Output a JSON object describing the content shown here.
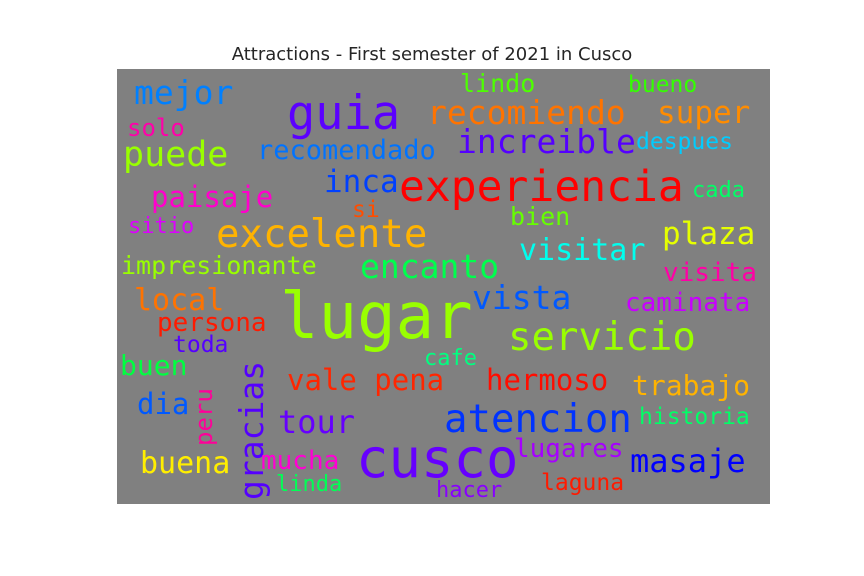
{
  "title": "Attractions - First semester of 2021 in Cusco",
  "words": {
    "lugar": {
      "text": "lugar",
      "color": "#99ff00"
    },
    "cusco": {
      "text": "cusco",
      "color": "#6600ff"
    },
    "experiencia": {
      "text": "experiencia",
      "color": "#ff0000"
    },
    "guia": {
      "text": "guia",
      "color": "#5b00ff"
    },
    "excelente": {
      "text": "excelente",
      "color": "#ffb300"
    },
    "atencion": {
      "text": "atencion",
      "color": "#0033ff"
    },
    "servicio": {
      "text": "servicio",
      "color": "#99ff00"
    },
    "recomiendo": {
      "text": "recomiendo",
      "color": "#ff7300"
    },
    "vale_pena": {
      "text": "vale pena",
      "color": "#ff2600"
    },
    "hermoso": {
      "text": "hermoso",
      "color": "#ff0d00"
    },
    "vista": {
      "text": "vista",
      "color": "#0059ff"
    },
    "encanto": {
      "text": "encanto",
      "color": "#00ff4d"
    },
    "increible": {
      "text": "increible",
      "color": "#5500ff"
    },
    "puede": {
      "text": "puede",
      "color": "#99ff00"
    },
    "mejor": {
      "text": "mejor",
      "color": "#0080ff"
    },
    "super": {
      "text": "super",
      "color": "#ff8c00"
    },
    "plaza": {
      "text": "plaza",
      "color": "#e6ff00"
    },
    "recomendado": {
      "text": "recomendado",
      "color": "#0073ff"
    },
    "visitar": {
      "text": "visitar",
      "color": "#00ffee"
    },
    "inca": {
      "text": "inca",
      "color": "#0040ff"
    },
    "masaje": {
      "text": "masaje",
      "color": "#0000ff"
    },
    "tour": {
      "text": "tour",
      "color": "#6600ff"
    },
    "trabajo": {
      "text": "trabajo",
      "color": "#ffb300"
    },
    "paisaje": {
      "text": "paisaje",
      "color": "#ff00cc"
    },
    "impresionante": {
      "text": "impresionante",
      "color": "#99ff00"
    },
    "local": {
      "text": "local",
      "color": "#ff7300"
    },
    "persona": {
      "text": "persona",
      "color": "#ff1a00"
    },
    "caminata": {
      "text": "caminata",
      "color": "#c800ff"
    },
    "buena": {
      "text": "buena",
      "color": "#ffee00"
    },
    "gracias": {
      "text": "gracias",
      "color": "#5500ff"
    },
    "lugares": {
      "text": "lugares",
      "color": "#a600ff"
    },
    "visita": {
      "text": "visita",
      "color": "#ff00a6"
    },
    "mucha": {
      "text": "mucha",
      "color": "#ff00d4"
    },
    "buen": {
      "text": "buen",
      "color": "#00ff40"
    },
    "dia": {
      "text": "dia",
      "color": "#0059ff"
    },
    "lindo": {
      "text": "lindo",
      "color": "#4dff00"
    },
    "bueno": {
      "text": "bueno",
      "color": "#33ff00"
    },
    "solo": {
      "text": "solo",
      "color": "#ff00aa"
    },
    "despues": {
      "text": "despues",
      "color": "#00ccff"
    },
    "cada": {
      "text": "cada",
      "color": "#00ff66"
    },
    "bien": {
      "text": "bien",
      "color": "#66ff00"
    },
    "si": {
      "text": "si",
      "color": "#ff4d00"
    },
    "sitio": {
      "text": "sitio",
      "color": "#dd00ff"
    },
    "toda": {
      "text": "toda",
      "color": "#5500ff"
    },
    "cafe": {
      "text": "cafe",
      "color": "#00ff80"
    },
    "peru": {
      "text": "peru",
      "color": "#ff0099"
    },
    "historia": {
      "text": "historia",
      "color": "#00ff66"
    },
    "linda": {
      "text": "linda",
      "color": "#00ff55"
    },
    "hacer": {
      "text": "hacer",
      "color": "#8800ff"
    },
    "laguna": {
      "text": "laguna",
      "color": "#ff1a00"
    }
  }
}
